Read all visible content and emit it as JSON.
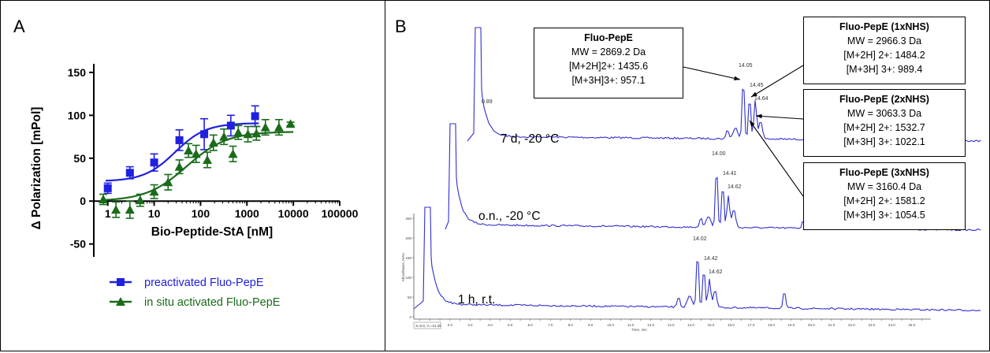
{
  "panelA": {
    "label": "A",
    "chart_data": {
      "type": "scatter",
      "xscale": "log",
      "xlim": [
        0.5,
        100000
      ],
      "ylim": [
        -65,
        160
      ],
      "xlabel": "Bio-Peptide-StA [nM]",
      "ylabel": "Δ Polarization [mPol]",
      "x_ticks": [
        "1",
        "10",
        "100",
        "1000",
        "10000",
        "100000"
      ],
      "y_ticks": [
        "150",
        "100",
        "50",
        "0",
        "-50"
      ],
      "legend_position": "bottom-left",
      "series": [
        {
          "name": "preactivated Fluo-PepE",
          "color": "#2020e0",
          "marker": "square",
          "x": [
            1,
            3,
            10,
            35,
            120,
            450,
            1500
          ],
          "y": [
            15,
            33,
            45,
            71,
            78,
            88,
            99
          ],
          "err": [
            6,
            7,
            10,
            12,
            18,
            12,
            12
          ],
          "fit": {
            "bottom": 23,
            "top": 91,
            "log_ec50": 1.45,
            "hill": 1.3
          }
        },
        {
          "name": "in situ activated Fluo-PepE",
          "color": "#1a6b1a",
          "marker": "triangle",
          "x": [
            0.8,
            1.5,
            3,
            5,
            10,
            20,
            35,
            55,
            80,
            140,
            190,
            320,
            500,
            650,
            1050,
            1600,
            2500,
            4900,
            8700
          ],
          "y": [
            2,
            -10,
            -10,
            1,
            11,
            22,
            40,
            59,
            55,
            48,
            68,
            75,
            55,
            80,
            78,
            79,
            86,
            86,
            90
          ],
          "err": [
            6,
            9,
            10,
            7,
            8,
            9,
            8,
            8,
            10,
            9,
            9,
            9,
            9,
            8,
            9,
            8,
            9,
            9,
            2
          ],
          "fit": {
            "bottom": 0,
            "top": 81,
            "log_ec50": 1.7,
            "hill": 1.0
          }
        }
      ]
    }
  },
  "panelB": {
    "label": "B",
    "traces": [
      {
        "label": "7 d, -20 °C",
        "color": "#3030d0",
        "peaks": [
          "0.89",
          "14.05",
          "14.45",
          "14.64"
        ]
      },
      {
        "label": "o.n., -20 °C",
        "color": "#3030d0",
        "peaks": [
          "14.00",
          "14.41",
          "14.62"
        ]
      },
      {
        "label": "1 h, r.t.",
        "color": "#3030d0",
        "peaks": [
          "14.02",
          "14.42",
          "14.62"
        ]
      }
    ],
    "boxes": [
      {
        "title": "Fluo-PepE",
        "mw": "MW = 2869.2 Da",
        "l2": "[M+2H]2+: 1435.6",
        "l3": "[M+3H]3+: 957.1"
      },
      {
        "title": "Fluo-PepE (1xNHS)",
        "mw": "MW = 2966.3 Da",
        "l2": "[M+2H] 2+: 1484.2",
        "l3": "[M+3H] 3+: 989.4"
      },
      {
        "title": "Fluo-PepE (2xNHS)",
        "mw": "MW = 3063.3 Da",
        "l2": "[M+2H] 2+: 1532.7",
        "l3": "[M+3H] 3+: 1022.1"
      },
      {
        "title": "Fluo-PepE (3xNHS)",
        "mw": "MW = 3160.4 Da",
        "l2": "[M+2H] 2+: 1581.2",
        "l3": "[M+3H] 3+: 1054.5"
      }
    ],
    "axis": {
      "ylabel": "Absorbance, mAU",
      "xlabel": "Time, min",
      "y_ticks": [
        "250",
        "200",
        "150",
        "100",
        "50",
        "0"
      ],
      "x_ticks": [
        "0.5",
        "1.0",
        "1.5",
        "2.0",
        "2.5",
        "3.0",
        "3.5",
        "4.0",
        "4.5",
        "5.0",
        "5.5",
        "6.0",
        "6.5",
        "7.0",
        "7.5",
        "8.0",
        "8.5",
        "9.0",
        "9.5",
        "10.0",
        "10.5",
        "11.0",
        "11.5",
        "12.0",
        "12.5",
        "13.0",
        "13.5",
        "14.0",
        "14.5",
        "15.0",
        "15.5",
        "16.0",
        "16.5",
        "17.0",
        "17.5",
        "18.0",
        "18.5",
        "19.0",
        "19.5",
        "20.0",
        "20.5",
        "21.0",
        "21.5",
        "22.0",
        "22.5",
        "23.0",
        "23.5",
        "24.0",
        "24.5",
        "25.0",
        "25.5"
      ],
      "cursor": "X=0.0, Y=-41.20"
    }
  }
}
